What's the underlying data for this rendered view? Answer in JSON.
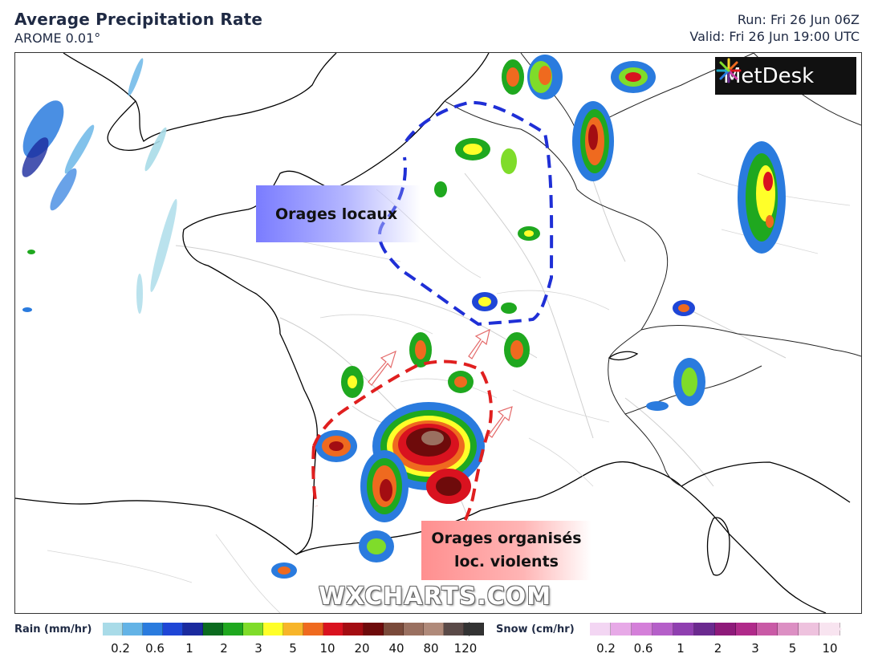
{
  "header": {
    "title": "Average Precipitation Rate",
    "model": "AROME 0.01°",
    "run": "Run: Fri 26 Jun 06Z",
    "valid": "Valid: Fri 26 Jun 19:00 UTC"
  },
  "map": {
    "logo_text": "MetDesk",
    "label_blue": "Orages locaux",
    "label_red_line1": "Orages organisés",
    "label_red_line2": "loc. violents",
    "watermark": "WXCHARTS.COM",
    "colors": {
      "blue_outline": "#1f2fd6",
      "red_outline": "#e01f1f",
      "coast": "#000000",
      "border": "#333333",
      "rivers": "#cccccc"
    }
  },
  "legend": {
    "rain": {
      "title": "Rain (mm/hr)",
      "colors": [
        "#a9dbe8",
        "#63b3e6",
        "#2a7bde",
        "#1f46d6",
        "#1a2a9e",
        "#0b6b1f",
        "#1fa81f",
        "#7fdc2a",
        "#ffff29",
        "#f7b52a",
        "#ef6a1f",
        "#d9121f",
        "#a30d12",
        "#6e0b0b",
        "#7a4a3a",
        "#9a7060",
        "#b08a7a",
        "#5a4a48",
        "#333333"
      ],
      "ticks": [
        "0.2",
        "0.6",
        "1",
        "2",
        "3",
        "5",
        "10",
        "20",
        "40",
        "80",
        "120"
      ]
    },
    "snow": {
      "title": "Snow (cm/hr)",
      "colors": [
        "#f3d6f3",
        "#e7a9e7",
        "#d47fd9",
        "#b55fc9",
        "#8f3fb0",
        "#6b2a8f",
        "#8e1a7a",
        "#b02a8a",
        "#c95aa6",
        "#dc8fc3",
        "#eec2de",
        "#f8e4f0"
      ],
      "ticks": [
        "0.2",
        "0.6",
        "1",
        "2",
        "3",
        "5",
        "10"
      ]
    }
  }
}
